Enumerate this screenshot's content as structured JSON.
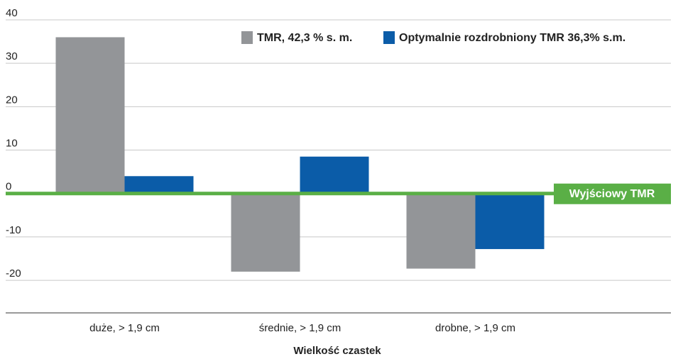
{
  "chart_data": {
    "type": "bar",
    "categories": [
      "duże, > 1,9 cm",
      "średnie, > 1,9 cm",
      "drobne, > 1,9 cm"
    ],
    "series": [
      {
        "name": "TMR, 42,3 % s. m.",
        "color": "#939598",
        "values": [
          36,
          -18,
          -17.3
        ]
      },
      {
        "name": "Optymalnie rozdrobniony TMR 36,3% s.m.",
        "color": "#0b5ca8",
        "values": [
          4,
          8.5,
          -12.8
        ]
      }
    ],
    "xlabel": "Wielkość czastek",
    "annotation": "Wyjściowy TMR",
    "reference_color": "#5aaf46",
    "ylim": [
      -27.5,
      40
    ],
    "yticks": [
      -20,
      -10,
      0,
      10,
      20,
      30,
      40
    ],
    "grid": true,
    "legend": "top-right"
  }
}
